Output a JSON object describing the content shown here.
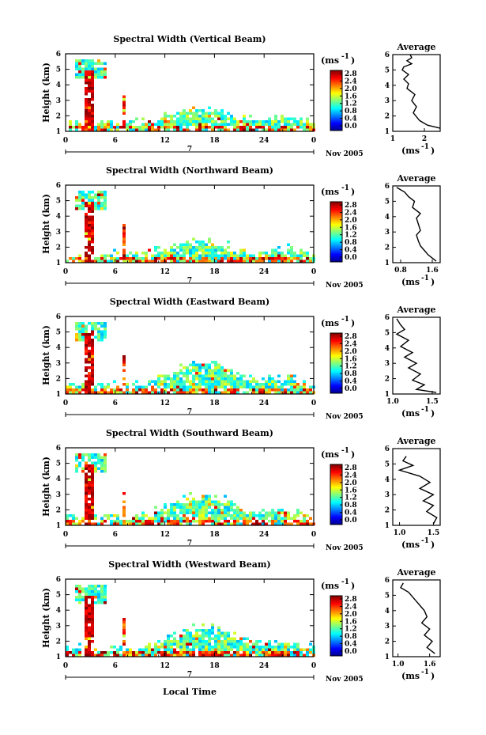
{
  "figure": {
    "panels": [
      {
        "title": "Spectral Width (Vertical Beam)",
        "ylabel": "Height (km)",
        "unit_label": "(ms",
        "unit_exp": "-1",
        "unit_close": ")",
        "cb_ticks": [
          "2.8",
          "2.4",
          "2.0",
          "1.6",
          "1.2",
          "0.8",
          "0.4",
          "0.0"
        ],
        "x_ticks": [
          "0",
          "6",
          "12",
          "18",
          "24",
          "0"
        ],
        "y_ticks": [
          "6",
          "5",
          "4",
          "3",
          "2",
          "1"
        ],
        "day_label": "7",
        "date_label": "Nov 2005",
        "avg_title": "Average",
        "avg_xticks": [
          "1",
          "2"
        ],
        "avg_xlabel": "(ms",
        "avg_yticks": [
          "6",
          "5",
          "4",
          "3",
          "2",
          "1"
        ]
      },
      {
        "title": "Spectral Width (Northward Beam)",
        "ylabel": "Height (km)",
        "unit_label": "(ms",
        "unit_exp": "-1",
        "unit_close": ")",
        "cb_ticks": [
          "2.8",
          "2.4",
          "2.0",
          "1.6",
          "1.2",
          "0.8",
          "0.4",
          "0.0"
        ],
        "x_ticks": [
          "0",
          "6",
          "12",
          "18",
          "24",
          "0"
        ],
        "y_ticks": [
          "6",
          "5",
          "4",
          "3",
          "2",
          "1"
        ],
        "day_label": "7",
        "date_label": "Nov 2005",
        "avg_title": "Average",
        "avg_xticks": [
          "0.8",
          "1.6"
        ],
        "avg_xlabel": "(ms",
        "avg_yticks": [
          "6",
          "5",
          "4",
          "3",
          "2",
          "1"
        ]
      },
      {
        "title": "Spectral Width (Eastward Beam)",
        "ylabel": "Height (km)",
        "unit_label": "(ms",
        "unit_exp": "-1",
        "unit_close": ")",
        "cb_ticks": [
          "2.8",
          "2.4",
          "2.0",
          "1.6",
          "1.2",
          "0.8",
          "0.4",
          "0.0"
        ],
        "x_ticks": [
          "0",
          "6",
          "12",
          "18",
          "24",
          "0"
        ],
        "y_ticks": [
          "6",
          "5",
          "4",
          "3",
          "2",
          "1"
        ],
        "day_label": "7",
        "date_label": "Nov 2005",
        "avg_title": "Average",
        "avg_xticks": [
          "1.0",
          "1.5"
        ],
        "avg_xlabel": "(ms",
        "avg_yticks": [
          "6",
          "5",
          "4",
          "3",
          "2",
          "1"
        ]
      },
      {
        "title": "Spectral Width (Southward Beam)",
        "ylabel": "Height (km)",
        "unit_label": "(ms",
        "unit_exp": "-1",
        "unit_close": ")",
        "cb_ticks": [
          "2.8",
          "2.4",
          "2.0",
          "1.6",
          "1.2",
          "0.8",
          "0.4",
          "0.0"
        ],
        "x_ticks": [
          "0",
          "6",
          "12",
          "18",
          "24",
          "0"
        ],
        "y_ticks": [
          "6",
          "5",
          "4",
          "3",
          "2",
          "1"
        ],
        "day_label": "7",
        "date_label": "Nov 2005",
        "avg_title": "Average",
        "avg_xticks": [
          "1.0",
          "1.5"
        ],
        "avg_xlabel": "(ms",
        "avg_yticks": [
          "6",
          "5",
          "4",
          "3",
          "2",
          "1"
        ]
      },
      {
        "title": "Spectral Width (Westward Beam)",
        "ylabel": "Height (km)",
        "unit_label": "(ms",
        "unit_exp": "-1",
        "unit_close": ")",
        "cb_ticks": [
          "2.8",
          "2.4",
          "2.0",
          "1.6",
          "1.2",
          "0.8",
          "0.4",
          "0.0"
        ],
        "x_ticks": [
          "0",
          "6",
          "12",
          "18",
          "24",
          "0"
        ],
        "y_ticks": [
          "6",
          "5",
          "4",
          "3",
          "2",
          "1"
        ],
        "day_label": "7",
        "date_label": "Nov 2005",
        "avg_title": "Average",
        "avg_xticks": [
          "1.0",
          "1.6"
        ],
        "avg_xlabel": "(ms",
        "avg_yticks": [
          "6",
          "5",
          "4",
          "3",
          "2",
          "1"
        ]
      }
    ],
    "xlabel": "Local Time"
  },
  "chart_data": [
    {
      "type": "heatmap",
      "title": "Spectral Width (Vertical Beam)",
      "xlabel": "",
      "ylabel": "Height (km)",
      "colorbar_label": "(ms-1)",
      "xlim_hours": [
        0,
        24
      ],
      "ylim_km": [
        1,
        6
      ],
      "zlim": [
        0.0,
        2.8
      ],
      "colormap": "jet",
      "date": "Nov 2005",
      "day": "7",
      "x_ticks": [
        "0",
        "6",
        "12",
        "18",
        "24",
        "0"
      ]
    },
    {
      "type": "line",
      "title": "Average",
      "xlabel": "(ms-1)",
      "ylabel": "",
      "xlim": [
        1,
        2.5
      ],
      "ylim": [
        1,
        6
      ],
      "x": [
        1.55,
        1.6,
        1.45,
        1.6,
        1.35,
        1.3,
        1.5,
        1.35,
        1.5,
        1.45,
        1.7,
        1.6,
        1.75,
        1.65,
        1.85,
        2.1,
        2.5
      ],
      "y": [
        6.0,
        5.8,
        5.6,
        5.4,
        5.2,
        5.0,
        4.7,
        4.4,
        4.1,
        3.8,
        3.4,
        3.0,
        2.6,
        2.2,
        1.7,
        1.4,
        1.2
      ]
    },
    {
      "type": "heatmap",
      "title": "Spectral Width (Northward Beam)",
      "xlabel": "",
      "ylabel": "Height (km)",
      "colorbar_label": "(ms-1)",
      "xlim_hours": [
        0,
        24
      ],
      "ylim_km": [
        1,
        6
      ],
      "zlim": [
        0.0,
        2.8
      ],
      "colormap": "jet",
      "date": "Nov 2005",
      "day": "7",
      "x_ticks": [
        "0",
        "6",
        "12",
        "18",
        "24",
        "0"
      ]
    },
    {
      "type": "line",
      "title": "Average",
      "xlabel": "(ms-1)",
      "ylabel": "",
      "xlim": [
        0.6,
        1.8
      ],
      "ylim": [
        1,
        6
      ],
      "x": [
        0.7,
        0.9,
        1.0,
        1.15,
        1.1,
        1.3,
        1.2,
        1.25,
        1.3,
        1.2,
        1.25,
        1.3,
        1.4,
        1.5,
        1.6,
        1.7
      ],
      "y": [
        5.9,
        5.6,
        5.3,
        5.0,
        4.6,
        4.2,
        3.9,
        3.5,
        3.1,
        2.8,
        2.4,
        2.1,
        1.8,
        1.5,
        1.3,
        1.1
      ]
    },
    {
      "type": "heatmap",
      "title": "Spectral Width (Eastward Beam)",
      "xlabel": "",
      "ylabel": "Height (km)",
      "colorbar_label": "(ms-1)",
      "xlim_hours": [
        0,
        24
      ],
      "ylim_km": [
        1,
        6
      ],
      "zlim": [
        0.0,
        2.8
      ],
      "colormap": "jet",
      "date": "Nov 2005",
      "day": "7",
      "x_ticks": [
        "0",
        "6",
        "12",
        "18",
        "24",
        "0"
      ]
    },
    {
      "type": "line",
      "title": "Average",
      "xlabel": "(ms-1)",
      "ylabel": "",
      "xlim": [
        1.0,
        1.6
      ],
      "ylim": [
        1,
        6
      ],
      "x": [
        1.05,
        1.1,
        1.15,
        1.05,
        1.2,
        1.1,
        1.25,
        1.15,
        1.3,
        1.2,
        1.35,
        1.25,
        1.4,
        1.3,
        1.55
      ],
      "y": [
        5.9,
        5.5,
        5.2,
        4.9,
        4.5,
        4.1,
        3.7,
        3.4,
        3.0,
        2.7,
        2.3,
        1.9,
        1.6,
        1.3,
        1.1
      ]
    },
    {
      "type": "heatmap",
      "title": "Spectral Width (Southward Beam)",
      "xlabel": "",
      "ylabel": "Height (km)",
      "colorbar_label": "(ms-1)",
      "xlim_hours": [
        0,
        24
      ],
      "ylim_km": [
        1,
        6
      ],
      "zlim": [
        0.0,
        2.8
      ],
      "colormap": "jet",
      "date": "Nov 2005",
      "day": "7",
      "x_ticks": [
        "0",
        "6",
        "12",
        "18",
        "24",
        "0"
      ]
    },
    {
      "type": "line",
      "title": "Average",
      "xlabel": "(ms-1)",
      "ylabel": "",
      "xlim": [
        0.9,
        1.6
      ],
      "ylim": [
        1,
        6
      ],
      "x": [
        1.1,
        1.05,
        1.2,
        1.0,
        1.3,
        1.45,
        1.3,
        1.5,
        1.35,
        1.5,
        1.4,
        1.55,
        1.5
      ],
      "y": [
        5.5,
        5.2,
        4.9,
        4.6,
        4.2,
        3.8,
        3.4,
        3.0,
        2.6,
        2.3,
        1.9,
        1.5,
        1.1
      ]
    },
    {
      "type": "heatmap",
      "title": "Spectral Width (Westward Beam)",
      "xlabel": "Local Time",
      "ylabel": "Height (km)",
      "colorbar_label": "(ms-1)",
      "xlim_hours": [
        0,
        24
      ],
      "ylim_km": [
        1,
        6
      ],
      "zlim": [
        0.0,
        2.8
      ],
      "colormap": "jet",
      "date": "Nov 2005",
      "day": "7",
      "x_ticks": [
        "0",
        "6",
        "12",
        "18",
        "24",
        "0"
      ]
    },
    {
      "type": "line",
      "title": "Average",
      "xlabel": "(ms-1)",
      "ylabel": "",
      "xlim": [
        0.9,
        1.8
      ],
      "ylim": [
        1,
        6
      ],
      "x": [
        1.1,
        1.05,
        1.2,
        1.3,
        1.4,
        1.5,
        1.55,
        1.45,
        1.6,
        1.5,
        1.65,
        1.55,
        1.7
      ],
      "y": [
        5.8,
        5.5,
        5.2,
        4.8,
        4.4,
        4.0,
        3.6,
        3.2,
        2.8,
        2.4,
        2.0,
        1.6,
        1.2
      ]
    }
  ]
}
